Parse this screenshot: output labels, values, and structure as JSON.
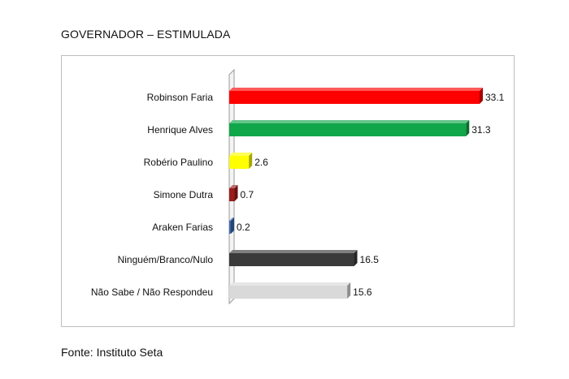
{
  "header": {
    "title": "GOVERNADOR – ESTIMULADA"
  },
  "footer": {
    "source": "Fonte: Instituto Seta"
  },
  "chart_data": {
    "type": "bar",
    "orientation": "horizontal",
    "categories": [
      "Robinson Faria",
      "Henrique Alves",
      "Robério Paulino",
      "Simone Dutra",
      "Araken Farias",
      "Ninguém/Branco/Nulo",
      "Não Sabe / Não Respondeu"
    ],
    "values": [
      33.1,
      31.3,
      2.6,
      0.7,
      0.2,
      16.5,
      15.6
    ],
    "value_labels": [
      "33.1",
      "31.3",
      "2.6",
      "0.7",
      "0.2",
      "16.5",
      "15.6"
    ],
    "colors": [
      "#ff0000",
      "#10a64a",
      "#ffff00",
      "#9b1c1c",
      "#3b68b0",
      "#3a3a3a",
      "#d9d9d9"
    ],
    "xlim": [
      0,
      33.1
    ],
    "grid": false,
    "legend": "none",
    "style": "3d"
  }
}
